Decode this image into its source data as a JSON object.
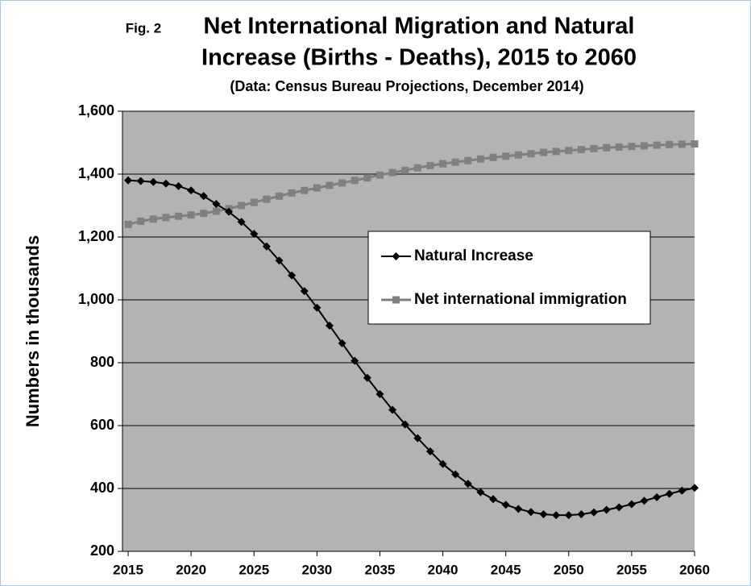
{
  "chart_data": {
    "type": "line",
    "fig_label": "Fig. 2",
    "title_lines": [
      "Net International Migration and Natural",
      "Increase (Births - Deaths), 2015 to 2060"
    ],
    "subtitle": "(Data: Census Bureau Projections, December 2014)",
    "y_label": "Numbers in thousands",
    "x": [
      2015,
      2016,
      2017,
      2018,
      2019,
      2020,
      2021,
      2022,
      2023,
      2024,
      2025,
      2026,
      2027,
      2028,
      2029,
      2030,
      2031,
      2032,
      2033,
      2034,
      2035,
      2036,
      2037,
      2038,
      2039,
      2040,
      2041,
      2042,
      2043,
      2044,
      2045,
      2046,
      2047,
      2048,
      2049,
      2050,
      2051,
      2052,
      2053,
      2054,
      2055,
      2056,
      2057,
      2058,
      2059,
      2060
    ],
    "series": [
      {
        "name": "Natural Increase",
        "color": "#000000",
        "marker": "diamond",
        "values": [
          1380,
          1378,
          1375,
          1370,
          1362,
          1348,
          1330,
          1305,
          1280,
          1248,
          1210,
          1170,
          1125,
          1078,
          1028,
          975,
          918,
          862,
          806,
          752,
          700,
          650,
          604,
          560,
          518,
          478,
          445,
          415,
          388,
          366,
          348,
          335,
          325,
          318,
          315,
          315,
          318,
          324,
          332,
          340,
          350,
          361,
          372,
          383,
          393,
          402
        ]
      },
      {
        "name": "Net international immigration",
        "color": "#808080",
        "marker": "square",
        "values": [
          1240,
          1250,
          1257,
          1262,
          1266,
          1270,
          1275,
          1282,
          1290,
          1300,
          1310,
          1320,
          1330,
          1340,
          1348,
          1356,
          1364,
          1372,
          1380,
          1388,
          1397,
          1405,
          1412,
          1420,
          1427,
          1433,
          1438,
          1443,
          1448,
          1453,
          1457,
          1461,
          1465,
          1469,
          1472,
          1475,
          1478,
          1481,
          1484,
          1486,
          1488,
          1490,
          1492,
          1494,
          1495,
          1496
        ]
      }
    ],
    "xlim": [
      2014.55,
      2060
    ],
    "xticks": [
      2015,
      2020,
      2025,
      2030,
      2035,
      2040,
      2045,
      2050,
      2055,
      2060
    ],
    "ylim": [
      200,
      1600
    ],
    "yticks": [
      200,
      400,
      600,
      800,
      {
        "value": 1000,
        "label": "1,000"
      },
      {
        "value": 1200,
        "label": "1,200"
      },
      {
        "value": 1400,
        "label": "1,400"
      },
      {
        "value": 1600,
        "label": "1,600"
      }
    ],
    "grid": true,
    "plot_background": "#b3b3b3"
  }
}
